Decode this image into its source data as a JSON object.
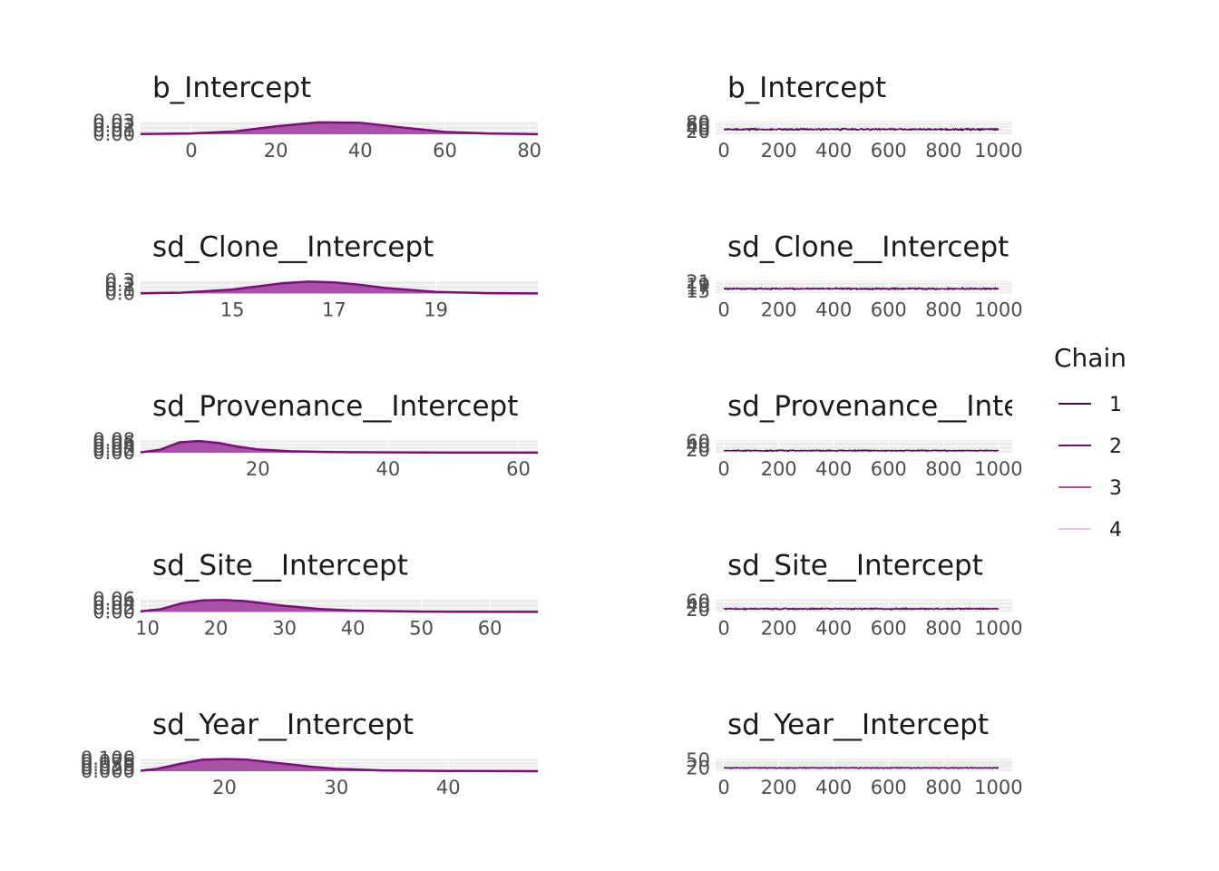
{
  "chart_data": {
    "type": "area",
    "layout": "density and trace panel grid",
    "legend": {
      "title": "Chain",
      "position": "right",
      "items": [
        {
          "label": "1",
          "color": "#4a0f4a"
        },
        {
          "label": "2",
          "color": "#7a0f7a"
        },
        {
          "label": "3",
          "color": "#b04db0"
        },
        {
          "label": "4",
          "color": "#e8c4e8"
        }
      ]
    },
    "density_fill": "#a040a0",
    "density_line": "#7a0f7a",
    "panel_bg": "#ebebeb",
    "grid_color": "#ffffff",
    "parameters": [
      {
        "name": "b_Intercept",
        "density": {
          "xlim": [
            -12,
            82
          ],
          "x_ticks": [
            "0",
            "20",
            "40",
            "60",
            "80"
          ],
          "y_ticks": [
            "0.00",
            "0.01",
            "0.02",
            "0.03"
          ],
          "ylim": [
            0,
            0.032
          ],
          "x": [
            -12,
            0,
            10,
            20,
            30,
            40,
            50,
            60,
            70,
            82
          ],
          "y": [
            0.0005,
            0.002,
            0.007,
            0.02,
            0.03,
            0.029,
            0.017,
            0.006,
            0.002,
            0.0004
          ]
        },
        "trace": {
          "xlim": [
            -30,
            1050
          ],
          "x_ticks": [
            "0",
            "200",
            "400",
            "600",
            "800",
            "1000"
          ],
          "y_ticks": [
            "20",
            "40",
            "60",
            "80"
          ],
          "ylim": [
            0,
            90
          ],
          "center": 35,
          "spread": 14
        }
      },
      {
        "name": "sd_Clone__Intercept",
        "density": {
          "xlim": [
            13.2,
            21
          ],
          "x_ticks": [
            "15",
            "17",
            "19"
          ],
          "y_ticks": [
            "0.0",
            "0.1",
            "0.2",
            "0.3"
          ],
          "ylim": [
            0,
            0.32
          ],
          "x": [
            13.2,
            14,
            15,
            16,
            16.5,
            17,
            17.5,
            18,
            19,
            20,
            21
          ],
          "y": [
            0.005,
            0.02,
            0.1,
            0.26,
            0.3,
            0.28,
            0.22,
            0.14,
            0.04,
            0.008,
            0.002
          ]
        },
        "trace": {
          "xlim": [
            -30,
            1050
          ],
          "x_ticks": [
            "0",
            "200",
            "400",
            "600",
            "800",
            "1000"
          ],
          "y_ticks": [
            "15",
            "17",
            "19",
            "21"
          ],
          "ylim": [
            13.5,
            22
          ],
          "center": 16.7,
          "spread": 1.2
        }
      },
      {
        "name": "sd_Provenance__Intercept",
        "density": {
          "xlim": [
            2,
            63
          ],
          "x_ticks": [
            "20",
            "40",
            "60"
          ],
          "y_ticks": [
            "0.00",
            "0.02",
            "0.04",
            "0.06",
            "0.08"
          ],
          "ylim": [
            0,
            0.085
          ],
          "x": [
            2,
            5,
            8,
            11,
            14,
            17,
            20,
            25,
            30,
            40,
            50,
            63
          ],
          "y": [
            0.002,
            0.02,
            0.07,
            0.078,
            0.065,
            0.04,
            0.022,
            0.01,
            0.005,
            0.002,
            0.001,
            0.0005
          ]
        },
        "trace": {
          "xlim": [
            -30,
            1050
          ],
          "x_ticks": [
            "0",
            "200",
            "400",
            "600",
            "800",
            "1000"
          ],
          "y_ticks": [
            "20",
            "40",
            "60"
          ],
          "ylim": [
            5,
            70
          ],
          "center": 16,
          "spread": 7
        }
      },
      {
        "name": "sd_Site__Intercept",
        "density": {
          "xlim": [
            9,
            67
          ],
          "x_ticks": [
            "10",
            "20",
            "30",
            "40",
            "50",
            "60"
          ],
          "y_ticks": [
            "0.00",
            "0.02",
            "0.04",
            "0.06"
          ],
          "ylim": [
            0,
            0.066
          ],
          "x": [
            9,
            12,
            15,
            18,
            21,
            24,
            27,
            30,
            35,
            40,
            50,
            67
          ],
          "y": [
            0.003,
            0.015,
            0.045,
            0.06,
            0.062,
            0.057,
            0.045,
            0.032,
            0.016,
            0.007,
            0.002,
            0.0004
          ]
        },
        "trace": {
          "xlim": [
            -30,
            1050
          ],
          "x_ticks": [
            "0",
            "200",
            "400",
            "600",
            "800",
            "1000"
          ],
          "y_ticks": [
            "20",
            "40",
            "60"
          ],
          "ylim": [
            8,
            72
          ],
          "center": 24,
          "spread": 8
        }
      },
      {
        "name": "sd_Year__Intercept",
        "density": {
          "xlim": [
            12.5,
            48
          ],
          "x_ticks": [
            "20",
            "30",
            "40"
          ],
          "y_ticks": [
            "0.000",
            "0.025",
            "0.050",
            "0.075",
            "0.100"
          ],
          "ylim": [
            0,
            0.105
          ],
          "x": [
            12.5,
            14,
            16,
            18,
            20,
            22,
            24,
            26,
            28,
            30,
            34,
            40,
            48
          ],
          "y": [
            0.004,
            0.02,
            0.06,
            0.095,
            0.1,
            0.096,
            0.075,
            0.055,
            0.035,
            0.02,
            0.007,
            0.002,
            0.0003
          ]
        },
        "trace": {
          "xlim": [
            -30,
            1050
          ],
          "x_ticks": [
            "0",
            "200",
            "400",
            "600",
            "800",
            "1000"
          ],
          "y_ticks": [
            "20",
            "50"
          ],
          "ylim": [
            8,
            58
          ],
          "center": 21,
          "spread": 4
        }
      }
    ]
  }
}
